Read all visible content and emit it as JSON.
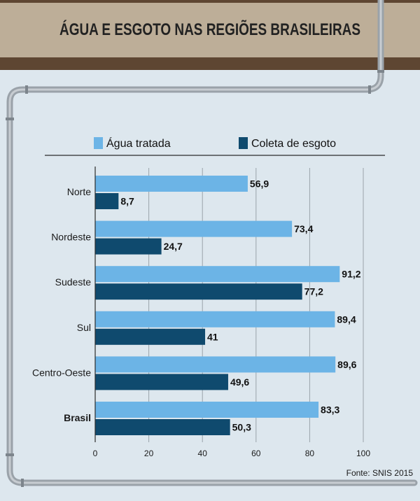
{
  "title": "ÁGUA E ESGOTO NAS REGIÕES BRASILEIRAS",
  "source": "Fonte: SNIS 2015",
  "colors": {
    "agua": "#6cb4e6",
    "esgoto": "#0f4a6e",
    "banner": "#bdae98",
    "banner_border": "#5e4632",
    "background": "#dde7ee",
    "pipe": "#9aa2a9"
  },
  "chart_data": {
    "type": "bar",
    "orientation": "horizontal",
    "categories": [
      "Norte",
      "Nordeste",
      "Sudeste",
      "Sul",
      "Centro-Oeste",
      "Brasil"
    ],
    "series": [
      {
        "name": "Água tratada",
        "values": [
          56.9,
          73.4,
          91.2,
          89.4,
          89.6,
          83.3
        ]
      },
      {
        "name": "Coleta de esgoto",
        "values": [
          8.7,
          24.7,
          77.2,
          41,
          49.6,
          50.3
        ]
      }
    ],
    "value_labels": [
      [
        "56,9",
        "73,4",
        "91,2",
        "89,4",
        "89,6",
        "83,3"
      ],
      [
        "8,7",
        "24,7",
        "77,2",
        "41",
        "49,6",
        "50,3"
      ]
    ],
    "xlim": [
      0,
      100
    ],
    "x_ticks": [
      "0",
      "20",
      "40",
      "60",
      "80",
      "100"
    ],
    "grid": "vertical",
    "legend": "top",
    "bold_categories": [
      "Brasil"
    ]
  }
}
